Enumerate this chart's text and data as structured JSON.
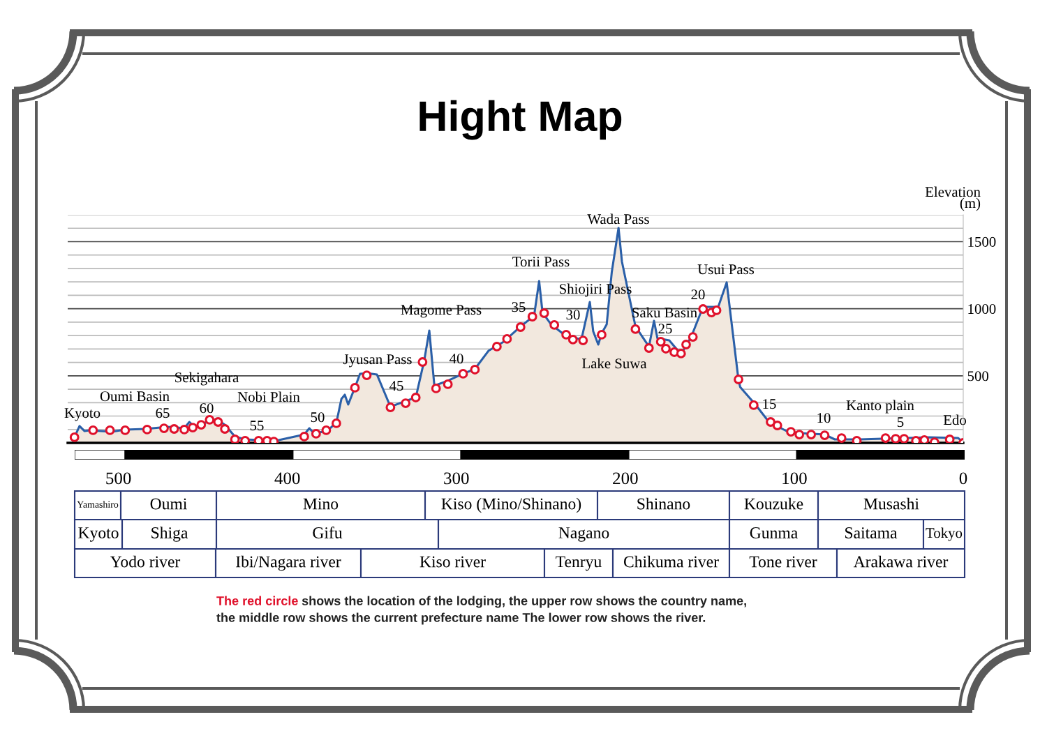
{
  "chart_data": {
    "type": "area",
    "title": "Hight Map",
    "ylabel": "Elevation\n(m)",
    "x": [
      526,
      523,
      520,
      517,
      504,
      496,
      484,
      471,
      461,
      458,
      455,
      446,
      442,
      437,
      431,
      425,
      407,
      390,
      387,
      384,
      376,
      371,
      368,
      366,
      364,
      359,
      357,
      353,
      347,
      343,
      339,
      330,
      324,
      319,
      316,
      313,
      305,
      297,
      289,
      281,
      272,
      262,
      254,
      251,
      249,
      244,
      236,
      226,
      223,
      221,
      219,
      216,
      214,
      211,
      208,
      204,
      202,
      194,
      186,
      183,
      181,
      174,
      167,
      161,
      154,
      145,
      140,
      133,
      132,
      123,
      115,
      103,
      82,
      76,
      61,
      20,
      3,
      0
    ],
    "series": [
      {
        "color": "#2a5fa8",
        "line_style": "solid",
        "values": [
          42,
          125,
          88,
          94,
          83,
          99,
          104,
          120,
          109,
          156,
          120,
          161,
          177,
          135,
          47,
          26,
          16,
          62,
          109,
          68,
          94,
          151,
          328,
          359,
          286,
          447,
          515,
          520,
          510,
          390,
          270,
          312,
          338,
          614,
          837,
          426,
          463,
          510,
          551,
          686,
          754,
          868,
          946,
          1206,
          972,
          884,
          806,
          770,
          936,
          1050,
          832,
          733,
          816,
          884,
          1274,
          1602,
          1352,
          868,
          718,
          910,
          780,
          764,
          660,
          790,
          1014,
          1014,
          1196,
          468,
          416,
          286,
          156,
          78,
          62,
          26,
          26,
          42,
          36,
          5
        ]
      },
      {
        "type": "scatter",
        "color": "#e0112b",
        "marker": "circle",
        "x": [
          526,
          515,
          505,
          496,
          483,
          473,
          467,
          461,
          456,
          451,
          446,
          441,
          437,
          431,
          425,
          417,
          412,
          408,
          390,
          383,
          377,
          371,
          360,
          353,
          339,
          330,
          324,
          320,
          312,
          305,
          296,
          289,
          276,
          270,
          262,
          255,
          248,
          242,
          235,
          231,
          225,
          214,
          194,
          186,
          179,
          176,
          171,
          167,
          164,
          160,
          154,
          149,
          146,
          133,
          124,
          114,
          110,
          102,
          97,
          90,
          82,
          72,
          63,
          46,
          40,
          35,
          28,
          23,
          17,
          8,
          0
        ],
        "values": [
          42,
          94,
          94,
          94,
          99,
          109,
          104,
          99,
          114,
          135,
          172,
          156,
          104,
          26,
          16,
          16,
          16,
          10,
          47,
          68,
          94,
          146,
          411,
          504,
          265,
          296,
          338,
          603,
          406,
          437,
          515,
          546,
          718,
          775,
          863,
          941,
          967,
          879,
          806,
          770,
          764,
          806,
          848,
          707,
          754,
          702,
          676,
          666,
          733,
          790,
          998,
          972,
          988,
          473,
          281,
          156,
          130,
          83,
          62,
          62,
          57,
          36,
          16,
          36,
          31,
          31,
          16,
          21,
          5,
          26,
          0
        ]
      }
    ],
    "xlim": [
      530,
      0
    ],
    "xticks": [
      500,
      400,
      300,
      200,
      100,
      0
    ],
    "ylim": [
      0,
      1700
    ],
    "yticks": [
      {
        "value": 100,
        "label": null
      },
      {
        "value": 200,
        "label": null
      },
      {
        "value": 300,
        "label": null
      },
      {
        "value": 400,
        "label": null
      },
      500,
      {
        "value": 600,
        "label": null
      },
      {
        "value": 700,
        "label": null
      },
      {
        "value": 800,
        "label": null
      },
      {
        "value": 900,
        "label": null
      },
      1000,
      {
        "value": 1100,
        "label": null
      },
      {
        "value": 1200,
        "label": null
      },
      {
        "value": 1300,
        "label": null
      },
      {
        "value": 1400,
        "label": null
      },
      1500,
      {
        "value": 1600,
        "label": null
      },
      {
        "value": 1700,
        "label": null
      }
    ],
    "grid": "y",
    "legend": false,
    "annotations": [
      "Kyoto",
      "Oumi Basin",
      "Sekigahara",
      "Nobi Plain",
      "Jyusan Pass",
      "Magome Pass",
      "Torii Pass",
      "Wada Pass",
      "Shiojiri Pass",
      "Saku Basin",
      "Usui Pass",
      "Lake Suwa",
      "Kanto plain",
      "Edo",
      "65",
      "60",
      "55",
      "50",
      "45",
      "40",
      "35",
      "30",
      "25",
      "20",
      "15",
      "10",
      "5",
      "Yamashiro",
      "Oumi",
      "Mino",
      "Kiso (Mino/Shinano)",
      "Shinano",
      "Kouzuke",
      "Musashi",
      "Kyoto",
      "Shiga",
      "Gifu",
      "Nagano",
      "Gunma",
      "Saitama",
      "Tokyo",
      "Yodo river",
      "Ibi/Nagara river",
      "Kiso river",
      "Tenryu",
      "Chikuma river",
      "Tone river",
      "Arakawa river",
      "The red circle",
      " shows the location of the lodging, the upper row shows the country name,",
      "the middle row shows the current prefecture name The lower row shows the river."
    ]
  }
}
